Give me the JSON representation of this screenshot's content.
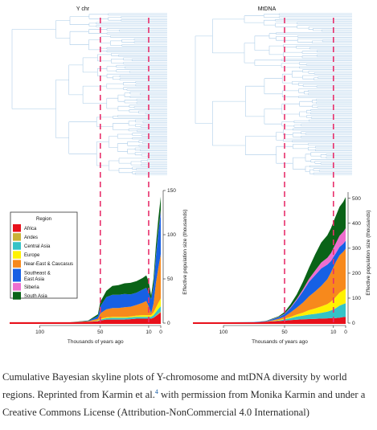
{
  "chart_data": [
    {
      "type": "area",
      "panel": "Y chr",
      "title": "Y chr",
      "stacked": true,
      "x_reversed": true,
      "xlim": [
        125,
        0
      ],
      "ylim": [
        0,
        150
      ],
      "x_ticks": [
        100,
        50,
        10,
        0
      ],
      "y_ticks": [
        0,
        50,
        100,
        150
      ],
      "xlabel": "Thousands of years ago",
      "ylabel": "Effective population size (thousands)",
      "dashed_lines_x": [
        50,
        10
      ],
      "has_tree": true,
      "x": [
        125,
        75,
        60,
        52,
        50,
        45,
        40,
        35,
        30,
        25,
        20,
        15,
        12,
        10,
        8,
        6,
        4,
        2,
        0
      ],
      "series": [
        {
          "name": "Africa",
          "color": "#e8101b",
          "values": [
            1,
            1,
            1.5,
            2,
            3,
            4,
            4,
            4,
            4,
            4.5,
            5,
            5,
            5,
            5,
            5,
            6,
            8,
            10,
            12
          ]
        },
        {
          "name": "Andes",
          "color": "#c9b236",
          "values": [
            0,
            0,
            0,
            0,
            0,
            0,
            0,
            0,
            0,
            0,
            0,
            0,
            0,
            0,
            0,
            0,
            0.5,
            1,
            1
          ]
        },
        {
          "name": "Central Asia",
          "color": "#35c3c7",
          "values": [
            0,
            0,
            0,
            0.5,
            1,
            1.5,
            2,
            2,
            2,
            2,
            2,
            2,
            2,
            2,
            2,
            3,
            4,
            5,
            6
          ]
        },
        {
          "name": "Europe",
          "color": "#fff200",
          "values": [
            0,
            0,
            0,
            0.5,
            1,
            1,
            1,
            1,
            1,
            1,
            1.5,
            2,
            2,
            2,
            2,
            3,
            5,
            7,
            9
          ]
        },
        {
          "name": "Near-East & Caucasus",
          "color": "#f7891c",
          "values": [
            0,
            0,
            0.5,
            2,
            6,
            9,
            10,
            10,
            11,
            11,
            12,
            14,
            16,
            10,
            2,
            10,
            28,
            40,
            50
          ]
        },
        {
          "name": "Southeast & East Asia",
          "color": "#1760e4",
          "values": [
            0,
            0,
            0.5,
            3,
            8,
            14,
            15,
            15,
            15,
            14,
            14,
            15,
            15,
            15,
            16,
            20,
            30,
            40,
            48
          ]
        },
        {
          "name": "Siberia",
          "color": "#ee6ecf",
          "values": [
            0,
            0,
            0,
            0,
            0,
            0,
            0,
            0,
            0,
            0,
            0,
            0,
            0,
            0,
            0,
            0.5,
            1,
            1.5,
            2
          ]
        },
        {
          "name": "South Asia",
          "color": "#0a6317",
          "values": [
            0,
            0,
            0.5,
            2,
            5,
            7,
            10,
            11,
            12,
            13,
            13,
            13,
            14,
            13,
            4,
            8,
            12,
            14,
            15
          ]
        }
      ]
    },
    {
      "type": "area",
      "panel": "MtDNA",
      "title": "MtDNA",
      "stacked": true,
      "x_reversed": true,
      "xlim": [
        125,
        0
      ],
      "ylim": [
        0,
        525
      ],
      "x_ticks": [
        100,
        50,
        10,
        0
      ],
      "y_ticks": [
        0,
        100,
        200,
        300,
        400,
        500
      ],
      "xlabel": "Thousands of years ago",
      "ylabel": "Effective population size (thousands)",
      "dashed_lines_x": [
        50,
        10
      ],
      "has_tree": true,
      "x": [
        125,
        75,
        65,
        60,
        55,
        50,
        45,
        40,
        35,
        30,
        25,
        20,
        15,
        12,
        10,
        8,
        5,
        2,
        0
      ],
      "series": [
        {
          "name": "Africa",
          "color": "#e8101b",
          "values": [
            2,
            3,
            5,
            7,
            8,
            10,
            12,
            14,
            15,
            16,
            17,
            18,
            19,
            20,
            20,
            20,
            22,
            24,
            25
          ]
        },
        {
          "name": "Andes",
          "color": "#c9b236",
          "values": [
            0,
            0,
            0,
            0,
            0,
            0,
            0,
            0,
            0,
            0,
            0,
            0,
            0,
            0,
            0,
            0,
            0,
            0,
            0
          ]
        },
        {
          "name": "Central Asia",
          "color": "#35c3c7",
          "values": [
            0,
            0,
            0,
            1,
            2,
            5,
            8,
            12,
            15,
            18,
            20,
            23,
            27,
            31,
            35,
            40,
            48,
            52,
            55
          ]
        },
        {
          "name": "Europe",
          "color": "#fff200",
          "values": [
            0,
            0,
            0,
            1,
            2,
            3,
            5,
            8,
            12,
            18,
            22,
            26,
            30,
            35,
            40,
            45,
            52,
            55,
            58
          ]
        },
        {
          "name": "Near-East & Caucasus",
          "color": "#f7891c",
          "values": [
            0,
            0,
            1,
            2,
            5,
            8,
            18,
            28,
            40,
            55,
            68,
            82,
            100,
            118,
            130,
            140,
            150,
            155,
            160
          ]
        },
        {
          "name": "Southeast & East Asia",
          "color": "#1760e4",
          "values": [
            0,
            1,
            2,
            4,
            6,
            10,
            18,
            30,
            45,
            58,
            65,
            70,
            58,
            45,
            40,
            35,
            33,
            32,
            32
          ]
        },
        {
          "name": "Siberia",
          "color": "#ee6ecf",
          "values": [
            0,
            0,
            0,
            1,
            1,
            2,
            3,
            5,
            8,
            12,
            18,
            24,
            28,
            32,
            36,
            40,
            45,
            48,
            50
          ]
        },
        {
          "name": "South Asia",
          "color": "#0a6317",
          "values": [
            0,
            0,
            1,
            2,
            3,
            6,
            12,
            18,
            30,
            45,
            65,
            80,
            90,
            100,
            105,
            110,
            116,
            120,
            125
          ]
        }
      ]
    }
  ],
  "legend": {
    "title": "Region",
    "items": [
      {
        "lines": [
          "Africa"
        ],
        "color": "#e8101b"
      },
      {
        "lines": [
          "Andes"
        ],
        "color": "#c9b236"
      },
      {
        "lines": [
          "Central Asia"
        ],
        "color": "#35c3c7"
      },
      {
        "lines": [
          "Europe"
        ],
        "color": "#fff200"
      },
      {
        "lines": [
          "Near-East & Caucasus"
        ],
        "color": "#f7891c"
      },
      {
        "lines": [
          "Southeast &",
          "East Asia"
        ],
        "color": "#1760e4"
      },
      {
        "lines": [
          "Siberia"
        ],
        "color": "#ee6ecf"
      },
      {
        "lines": [
          "South Asia"
        ],
        "color": "#0a6317"
      }
    ]
  },
  "colors": {
    "dashed": "#e8306c",
    "tree": "#a9cbe8",
    "axis": "#222222"
  },
  "caption": {
    "text_before_ref": "Cumulative Bayesian skyline plots of Y-chromosome and mtDNA diversity by world regions. Reprinted from Karmin et al.",
    "ref_number": "4",
    "text_after_ref": " with permission from Monika Karmin and under a Creative Commons License (Attribution-NonCommercial 4.0 International)"
  }
}
